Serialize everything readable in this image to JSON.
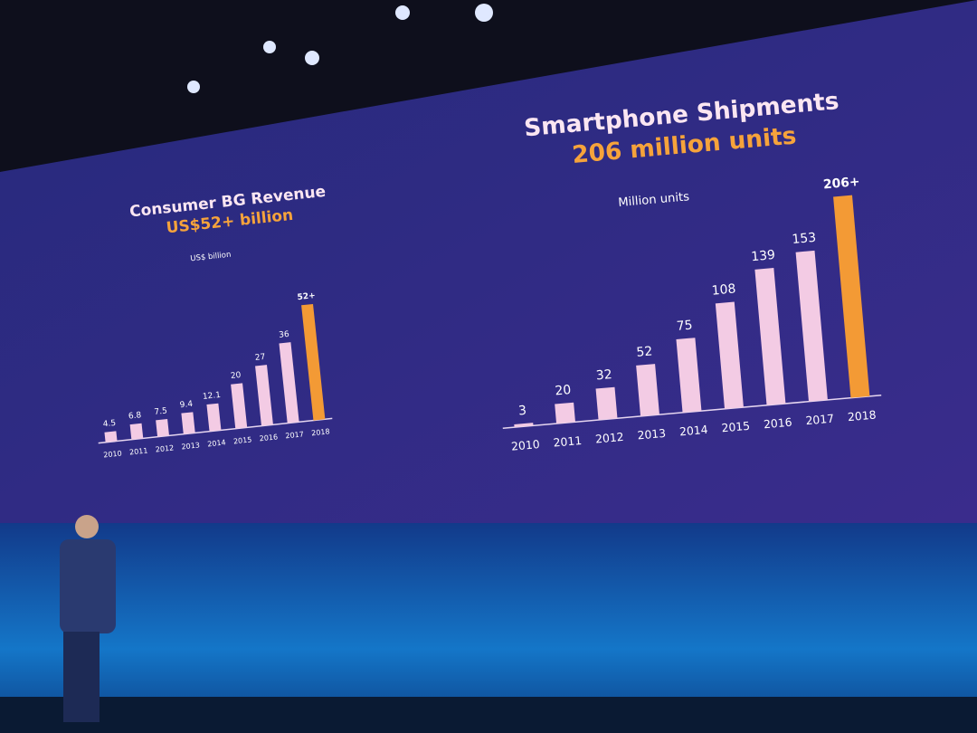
{
  "chart_data": [
    {
      "type": "bar",
      "title": "Consumer BG Revenue",
      "subtitle": "US$52+ billion",
      "unit_label": "US$ billion",
      "categories": [
        "2010",
        "2011",
        "2012",
        "2013",
        "2014",
        "2015",
        "2016",
        "2017",
        "2018"
      ],
      "values": [
        4.5,
        6.8,
        7.5,
        9.4,
        12.1,
        20,
        27,
        36,
        52
      ],
      "value_labels": [
        "4.5",
        "6.8",
        "7.5",
        "9.4",
        "12.1",
        "20",
        "27",
        "36",
        "52+"
      ],
      "colors": [
        "#f3cbe4",
        "#f3cbe4",
        "#f3cbe4",
        "#f3cbe4",
        "#f3cbe4",
        "#f3cbe4",
        "#f3cbe4",
        "#f3cbe4",
        "#f39a35"
      ]
    },
    {
      "type": "bar",
      "title": "Smartphone Shipments",
      "subtitle": "206 million units",
      "unit_label": "Million units",
      "categories": [
        "2010",
        "2011",
        "2012",
        "2013",
        "2014",
        "2015",
        "2016",
        "2017",
        "2018"
      ],
      "values": [
        3,
        20,
        32,
        52,
        75,
        108,
        139,
        153,
        206
      ],
      "value_labels": [
        "3",
        "20",
        "32",
        "52",
        "75",
        "108",
        "139",
        "153",
        "206+"
      ],
      "colors": [
        "#f3cbe4",
        "#f3cbe4",
        "#f3cbe4",
        "#f3cbe4",
        "#f3cbe4",
        "#f3cbe4",
        "#f3cbe4",
        "#f3cbe4",
        "#f39a35"
      ]
    }
  ]
}
